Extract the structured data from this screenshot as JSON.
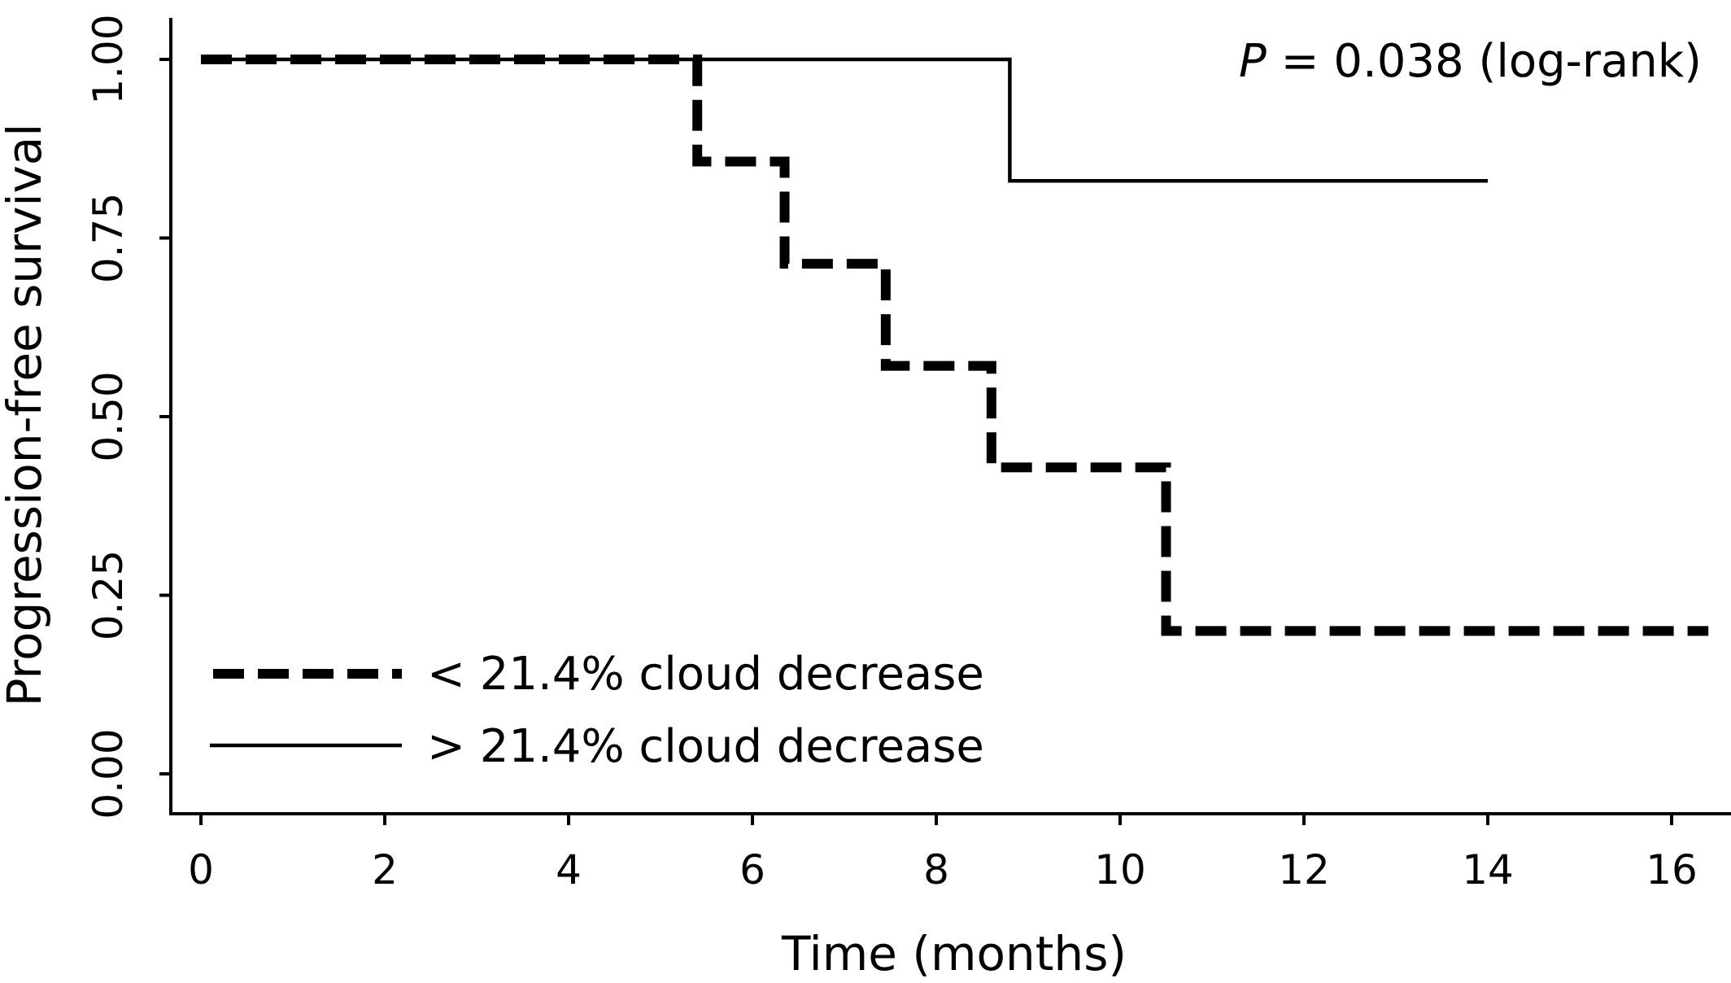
{
  "chart_data": {
    "type": "line",
    "subtype": "kaplan-meier step",
    "xlabel": "Time (months)",
    "ylabel": "Progression-free survival",
    "xlim": [
      -0.4,
      16.6
    ],
    "ylim": [
      -0.05,
      1.05
    ],
    "x_ticks": [
      0,
      2,
      4,
      6,
      8,
      10,
      12,
      14,
      16
    ],
    "x_tick_labels": [
      "0",
      "2",
      "4",
      "6",
      "8",
      "10",
      "12",
      "14",
      "16"
    ],
    "y_ticks": [
      0,
      0.25,
      0.5,
      0.75,
      1.0
    ],
    "y_tick_labels": [
      "0.00",
      "0.25",
      "0.50",
      "0.75",
      "1.00"
    ],
    "grid": false,
    "legend_position": "bottom-left",
    "annotation": {
      "italic": "P",
      "rest": " = 0.038 (log-rank)"
    },
    "series": [
      {
        "name": "< 21.4% cloud decrease",
        "style": "dashed",
        "color": "#000000",
        "x": [
          0,
          5.4,
          6.35,
          7.45,
          8.6,
          10.5,
          16.4
        ],
        "y": [
          1.0,
          0.857,
          0.714,
          0.571,
          0.429,
          0.2,
          0.2
        ]
      },
      {
        "name": "> 21.4% cloud decrease",
        "style": "solid",
        "color": "#000000",
        "x": [
          0,
          8.8,
          14.0
        ],
        "y": [
          1.0,
          0.83,
          0.83
        ]
      }
    ]
  }
}
